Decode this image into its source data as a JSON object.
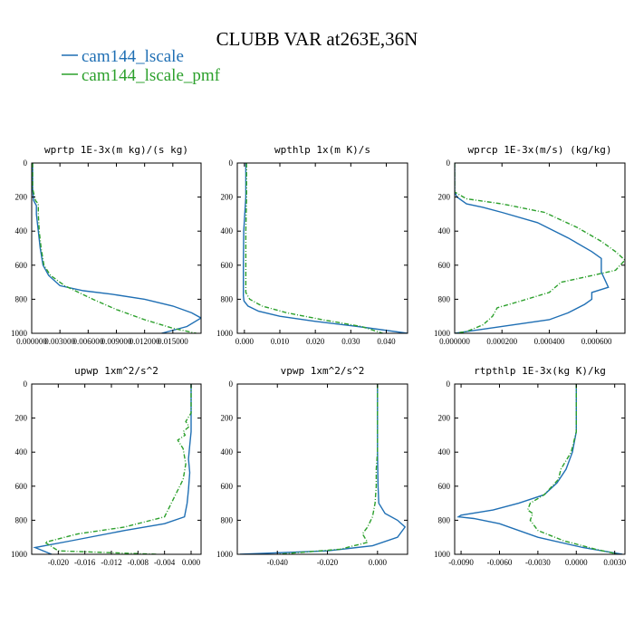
{
  "figure": {
    "title": "CLUBB VAR at263E,36N",
    "legend": [
      {
        "label": "cam144_lscale",
        "color": "#1f6fb4",
        "dash": "solid"
      },
      {
        "label": "cam144_lscale_pmf",
        "color": "#2ca02c",
        "dash": "dashdot"
      }
    ]
  },
  "chart_data": [
    {
      "type": "line",
      "title": "wprtp  1E-3x(m kg)/(s kg)",
      "xlim": [
        0,
        0.018
      ],
      "ylim": [
        1000,
        0
      ],
      "xticks": [
        0.0,
        0.003,
        0.006,
        0.009,
        0.012,
        0.015
      ],
      "xtick_labels": [
        "0.000000",
        "0.003000",
        "0.006000",
        "0.009000",
        "0.012000",
        "0.015000"
      ],
      "yticks": [
        0,
        200,
        400,
        600,
        800,
        1000
      ],
      "ytick_labels": [
        "0",
        "200",
        "400",
        "600",
        "800",
        "1000"
      ],
      "series": [
        {
          "name": "cam144_lscale",
          "x": [
            0.0001,
            0.0001,
            0.0002,
            0.0005,
            0.0005,
            0.0007,
            0.0009,
            0.0012,
            0.0018,
            0.003,
            0.0055,
            0.0085,
            0.012,
            0.015,
            0.017,
            0.018,
            0.0165,
            0.0138
          ],
          "y": [
            0,
            150,
            220,
            250,
            300,
            400,
            500,
            600,
            660,
            720,
            750,
            770,
            800,
            840,
            880,
            910,
            960,
            1000
          ]
        },
        {
          "name": "cam144_lscale_pmf",
          "x": [
            0.0001,
            0.0001,
            0.0004,
            0.0007,
            0.0007,
            0.0008,
            0.001,
            0.0013,
            0.002,
            0.0035,
            0.005,
            0.0065,
            0.009,
            0.012,
            0.015,
            0.0175
          ],
          "y": [
            0,
            150,
            220,
            240,
            300,
            400,
            500,
            600,
            660,
            720,
            760,
            800,
            860,
            920,
            970,
            1000
          ]
        }
      ]
    },
    {
      "type": "line",
      "title": "wpthlp  1x(m K)/s",
      "xlim": [
        -0.002,
        0.046
      ],
      "ylim": [
        1000,
        0
      ],
      "xticks": [
        0.0,
        0.01,
        0.02,
        0.03,
        0.04
      ],
      "xtick_labels": [
        "0.000",
        "0.010",
        "0.020",
        "0.030",
        "0.040"
      ],
      "yticks": [
        0,
        200,
        400,
        600,
        800,
        1000
      ],
      "ytick_labels": [
        "0",
        "200",
        "400",
        "600",
        "800",
        "1000"
      ],
      "series": [
        {
          "name": "cam144_lscale",
          "x": [
            0.0004,
            0.0004,
            -0.0002,
            -0.0003,
            -0.0003,
            -0.0001,
            0.001,
            0.004,
            0.01,
            0.02,
            0.032,
            0.046
          ],
          "y": [
            0,
            200,
            400,
            600,
            780,
            810,
            840,
            870,
            900,
            930,
            960,
            1000
          ]
        },
        {
          "name": "cam144_lscale_pmf",
          "x": [
            0.0006,
            0.0006,
            0.0004,
            0.0004,
            0.0004,
            0.0015,
            0.005,
            0.012,
            0.022,
            0.033,
            0.039
          ],
          "y": [
            0,
            200,
            400,
            600,
            760,
            800,
            840,
            880,
            920,
            960,
            1000
          ]
        }
      ]
    },
    {
      "type": "line",
      "title": "wprcp  1E-3x(m/s) (kg/kg)",
      "xlim": [
        0,
        0.00072
      ],
      "ylim": [
        1000,
        0
      ],
      "xticks": [
        0.0,
        0.0002,
        0.0004,
        0.0006
      ],
      "xtick_labels": [
        "0.000000",
        "0.000200",
        "0.000400",
        "0.000600"
      ],
      "yticks": [
        0,
        200,
        400,
        600,
        800,
        1000
      ],
      "ytick_labels": [
        "0",
        "200",
        "400",
        "600",
        "800",
        "1000"
      ],
      "series": [
        {
          "name": "cam144_lscale",
          "x": [
            0,
            0,
            1e-05,
            5e-05,
            0.00012,
            0.0002,
            0.00035,
            0.00048,
            0.00058,
            0.00062,
            0.00062,
            0.00065,
            0.00058,
            0.00058,
            0.00055,
            0.00048,
            0.0004,
            0.00025,
            5e-05,
            0
          ],
          "y": [
            0,
            170,
            200,
            240,
            260,
            290,
            350,
            440,
            520,
            560,
            640,
            730,
            760,
            800,
            830,
            880,
            920,
            950,
            990,
            1000
          ]
        },
        {
          "name": "cam144_lscale_pmf",
          "x": [
            0,
            0,
            5e-05,
            0.0002,
            0.00038,
            0.00052,
            0.00062,
            0.00068,
            0.00072,
            0.00068,
            0.00055,
            0.00045,
            0.0004,
            0.00028,
            0.00018,
            0.00016,
            0.00012,
            5e-05,
            0
          ],
          "y": [
            0,
            170,
            210,
            240,
            290,
            380,
            460,
            520,
            570,
            630,
            670,
            700,
            760,
            810,
            850,
            900,
            950,
            990,
            1000
          ]
        }
      ]
    },
    {
      "type": "line",
      "title": "upwp  1xm^2/s^2",
      "xlim": [
        -0.024,
        0.0015
      ],
      "ylim": [
        1000,
        0
      ],
      "xticks": [
        -0.02,
        -0.016,
        -0.012,
        -0.008,
        -0.004,
        0.0
      ],
      "xtick_labels": [
        "-0.020",
        "-0.016",
        "-0.012",
        "-0.008",
        "-0.004",
        "0.000"
      ],
      "yticks": [
        0,
        200,
        400,
        600,
        800,
        1000
      ],
      "ytick_labels": [
        "0",
        "200",
        "400",
        "600",
        "800",
        "1000"
      ],
      "series": [
        {
          "name": "cam144_lscale",
          "x": [
            0,
            0,
            -0.0002,
            -0.0004,
            -0.0002,
            -0.0004,
            -0.0006,
            -0.001,
            -0.004,
            -0.01,
            -0.018,
            -0.0235,
            -0.021
          ],
          "y": [
            0,
            280,
            360,
            440,
            520,
            620,
            700,
            780,
            820,
            860,
            920,
            960,
            1000
          ]
        },
        {
          "name": "cam144_lscale_pmf",
          "x": [
            0,
            0,
            -0.0008,
            -0.0003,
            -0.0012,
            -0.0009,
            -0.002,
            -0.0012,
            -0.0008,
            -0.0012,
            -0.004,
            -0.01,
            -0.017,
            -0.022,
            -0.02,
            -0.005
          ],
          "y": [
            0,
            170,
            220,
            250,
            280,
            300,
            330,
            380,
            470,
            560,
            780,
            840,
            880,
            930,
            980,
            1000
          ]
        }
      ]
    },
    {
      "type": "line",
      "title": "vpwp  1xm^2/s^2",
      "xlim": [
        -0.056,
        0.012
      ],
      "ylim": [
        1000,
        0
      ],
      "xticks": [
        -0.04,
        -0.02,
        0.0
      ],
      "xtick_labels": [
        "-0.040",
        "-0.020",
        "0.000"
      ],
      "yticks": [
        0,
        200,
        400,
        600,
        800,
        1000
      ],
      "ytick_labels": [
        "0",
        "200",
        "400",
        "600",
        "800",
        "1000"
      ],
      "series": [
        {
          "name": "cam144_lscale",
          "x": [
            0,
            0,
            0.0002,
            0.0005,
            0.003,
            0.008,
            0.011,
            0.008,
            -0.002,
            -0.02,
            -0.055
          ],
          "y": [
            0,
            400,
            600,
            700,
            760,
            800,
            840,
            900,
            950,
            980,
            1000
          ]
        },
        {
          "name": "cam144_lscale_pmf",
          "x": [
            0,
            0,
            -0.0005,
            -0.0005,
            -0.001,
            -0.002,
            -0.004,
            -0.006,
            -0.004,
            -0.015,
            -0.04
          ],
          "y": [
            0,
            400,
            500,
            600,
            700,
            780,
            840,
            880,
            930,
            970,
            1000
          ]
        }
      ]
    },
    {
      "type": "line",
      "title": "rtpthlp  1E-3x(kg K)/kg",
      "xlim": [
        -0.0095,
        0.0038
      ],
      "ylim": [
        1000,
        0
      ],
      "xticks": [
        -0.009,
        -0.006,
        -0.003,
        0.0,
        0.003
      ],
      "xtick_labels": [
        "-0.0090",
        "-0.0060",
        "-0.0030",
        "0.0000",
        "0.0030"
      ],
      "yticks": [
        0,
        200,
        400,
        600,
        800,
        1000
      ],
      "ytick_labels": [
        "0",
        "200",
        "400",
        "600",
        "800",
        "1000"
      ],
      "series": [
        {
          "name": "cam144_lscale",
          "x": [
            0,
            0,
            -0.0003,
            -0.0008,
            -0.0015,
            -0.0025,
            -0.0045,
            -0.0065,
            -0.009,
            -0.0092,
            -0.008,
            -0.006,
            -0.003,
            0.0005,
            0.0028,
            0.0036
          ],
          "y": [
            0,
            280,
            400,
            500,
            580,
            650,
            700,
            740,
            770,
            780,
            790,
            820,
            900,
            960,
            990,
            1000
          ]
        },
        {
          "name": "cam144_lscale_pmf",
          "x": [
            0,
            0,
            -0.0004,
            -0.0012,
            -0.0014,
            -0.0025,
            -0.0036,
            -0.0038,
            -0.0034,
            -0.0036,
            -0.003,
            -0.001,
            0.0015,
            0.0033
          ],
          "y": [
            0,
            280,
            400,
            500,
            560,
            650,
            700,
            740,
            760,
            800,
            860,
            920,
            970,
            1000
          ]
        }
      ]
    }
  ]
}
